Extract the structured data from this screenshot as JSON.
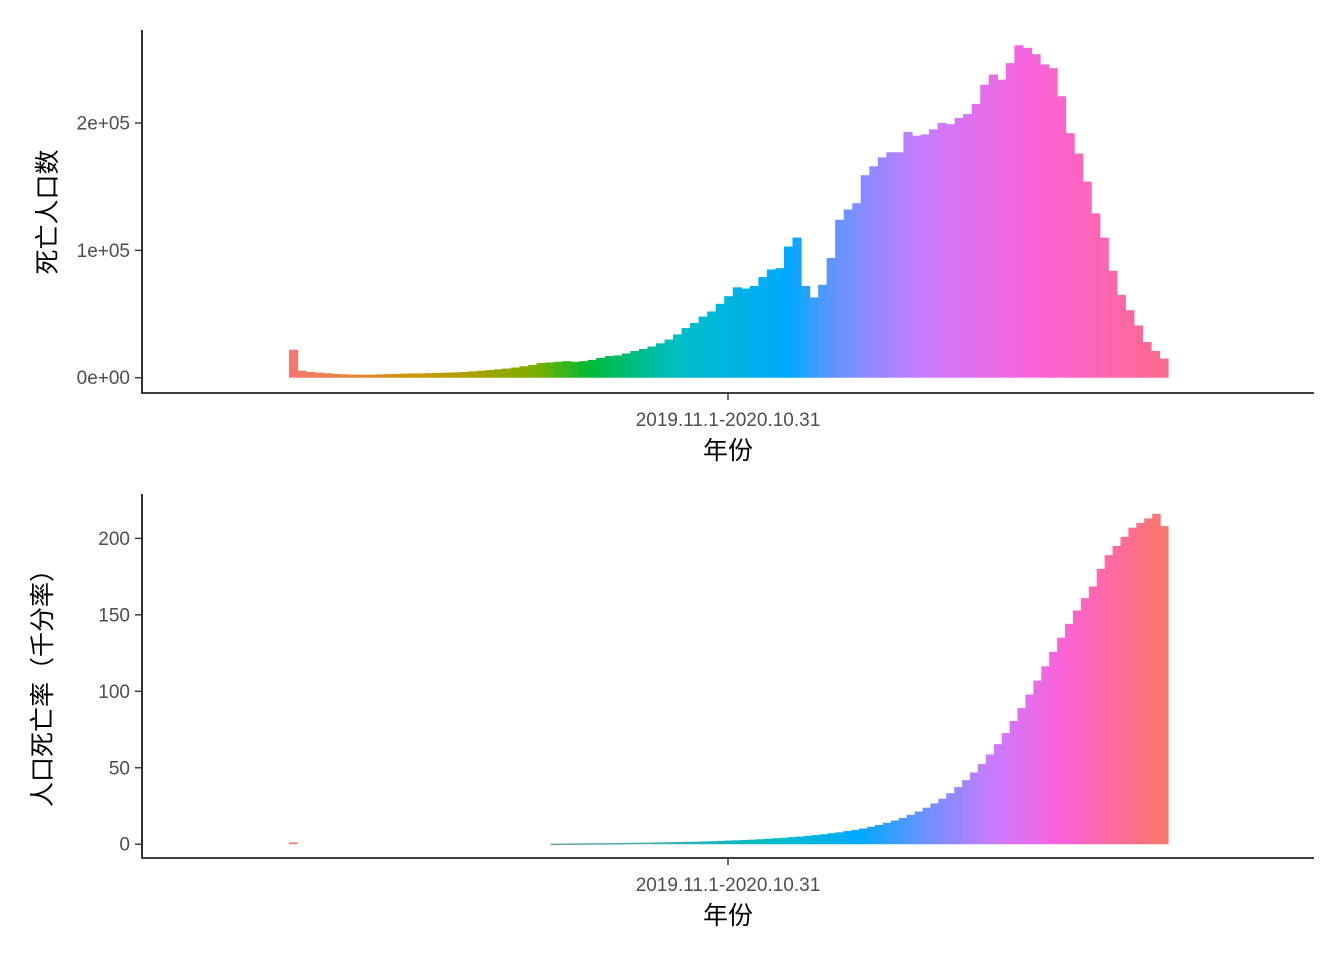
{
  "chart_data": [
    {
      "type": "bar",
      "xlabel": "年份",
      "ylabel": "死亡人口数",
      "x_tick_label": "2019.11.1-2020.10.31",
      "y_ticks": [
        {
          "value": 0,
          "label": "0e+00"
        },
        {
          "value": 100000,
          "label": "1e+05"
        },
        {
          "value": 200000,
          "label": "2e+05"
        }
      ],
      "ylim": [
        -12000,
        273000
      ],
      "grid": false,
      "legend": "none",
      "fill": "rainbow gradient across bars (red → olive → green → teal → blue → purple → magenta → pink)",
      "values": [
        22000,
        5500,
        4500,
        4000,
        3500,
        3000,
        2700,
        2500,
        2400,
        2400,
        2600,
        2800,
        3000,
        3200,
        3300,
        3400,
        3600,
        3800,
        4000,
        4200,
        4500,
        5000,
        5500,
        6000,
        6600,
        7200,
        8000,
        9000,
        10000,
        11500,
        12000,
        12500,
        13000,
        12500,
        13000,
        14000,
        15500,
        17000,
        17500,
        19000,
        21000,
        22500,
        24500,
        27000,
        30000,
        34000,
        39000,
        43000,
        48000,
        52000,
        58000,
        64000,
        71000,
        70000,
        72000,
        79000,
        85000,
        86000,
        103000,
        110000,
        72000,
        63000,
        73000,
        94000,
        124000,
        132000,
        137000,
        159000,
        166000,
        173000,
        177000,
        177000,
        193000,
        190000,
        191000,
        195000,
        200000,
        199000,
        204000,
        207000,
        215000,
        230000,
        238000,
        234000,
        247000,
        261000,
        259000,
        254000,
        246000,
        243000,
        221000,
        192000,
        176000,
        154000,
        129000,
        110000,
        84000,
        65000,
        53000,
        41000,
        28000,
        21000,
        15000
      ]
    },
    {
      "type": "bar",
      "xlabel": "年份",
      "ylabel": "人口死亡率（千分率）",
      "x_tick_label": "2019.11.1-2020.10.31",
      "y_ticks": [
        {
          "value": 0,
          "label": "0"
        },
        {
          "value": 50,
          "label": "50"
        },
        {
          "value": 100,
          "label": "100"
        },
        {
          "value": 150,
          "label": "150"
        },
        {
          "value": 200,
          "label": "200"
        }
      ],
      "ylim": [
        -9,
        229
      ],
      "grid": false,
      "legend": "none",
      "fill": "rainbow gradient across bars (teal → blue → purple → magenta → pink → red)",
      "values": [
        1.2,
        0,
        0,
        0,
        0,
        0,
        0,
        0,
        0,
        0,
        0,
        0,
        0,
        0,
        0,
        0,
        0,
        0,
        0,
        0,
        0,
        0,
        0,
        0,
        0,
        0,
        0,
        0,
        0,
        0,
        0,
        0,
        0,
        0.4,
        0.5,
        0.5,
        0.6,
        0.6,
        0.7,
        0.7,
        0.8,
        0.8,
        0.9,
        1.0,
        1.0,
        1.1,
        1.2,
        1.3,
        1.4,
        1.5,
        1.6,
        1.7,
        1.9,
        2.0,
        2.2,
        2.4,
        2.6,
        2.8,
        3.0,
        3.3,
        3.6,
        3.9,
        4.2,
        4.6,
        5.0,
        5.5,
        6.0,
        6.5,
        7.2,
        7.8,
        8.6,
        9.4,
        10.3,
        11.4,
        12.6,
        14.0,
        15.5,
        17.2,
        19.2,
        21.4,
        23.9,
        26.7,
        29.8,
        33.4,
        37.4,
        41.9,
        46.9,
        52.5,
        58.7,
        65.4,
        72.7,
        80.6,
        89.0,
        97.9,
        107.0,
        116.3,
        125.7,
        135.0,
        144.1,
        152.8,
        160.9,
        168.5,
        180.0,
        189.0,
        195.0,
        201.0,
        207.0,
        210.0,
        213.0,
        216.0,
        208.0
      ]
    }
  ]
}
